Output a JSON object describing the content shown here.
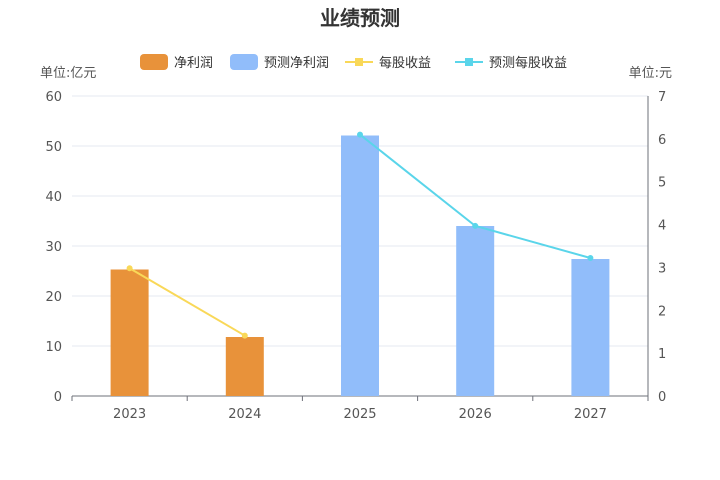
{
  "chart_data": {
    "type": "bar",
    "title": "业绩预测",
    "left_unit": "单位:亿元",
    "right_unit": "单位:元",
    "categories": [
      "2023",
      "2024",
      "2025",
      "2026",
      "2027"
    ],
    "ylim": [
      0,
      60
    ],
    "y_ticks": [
      0,
      10,
      20,
      30,
      40,
      50,
      60
    ],
    "y2lim": [
      0,
      7
    ],
    "y2_ticks": [
      0,
      1,
      2,
      3,
      4,
      5,
      6,
      7
    ],
    "grid": true,
    "legend_position": "top",
    "series": [
      {
        "name": "净利润",
        "type": "bar",
        "axis": "left",
        "color": "#E8923A",
        "values": [
          25.3,
          11.8,
          null,
          null,
          null
        ]
      },
      {
        "name": "预测净利润",
        "type": "bar",
        "axis": "left",
        "color": "#91BDFA",
        "values": [
          null,
          null,
          52.1,
          34.0,
          27.4
        ]
      },
      {
        "name": "每股收益",
        "type": "line",
        "axis": "right",
        "color": "#F9D858",
        "values": [
          2.98,
          1.41,
          null,
          null,
          null
        ]
      },
      {
        "name": "预测每股收益",
        "type": "line",
        "axis": "right",
        "color": "#5AD5EA",
        "values": [
          null,
          null,
          6.1,
          3.97,
          3.22
        ]
      }
    ]
  }
}
